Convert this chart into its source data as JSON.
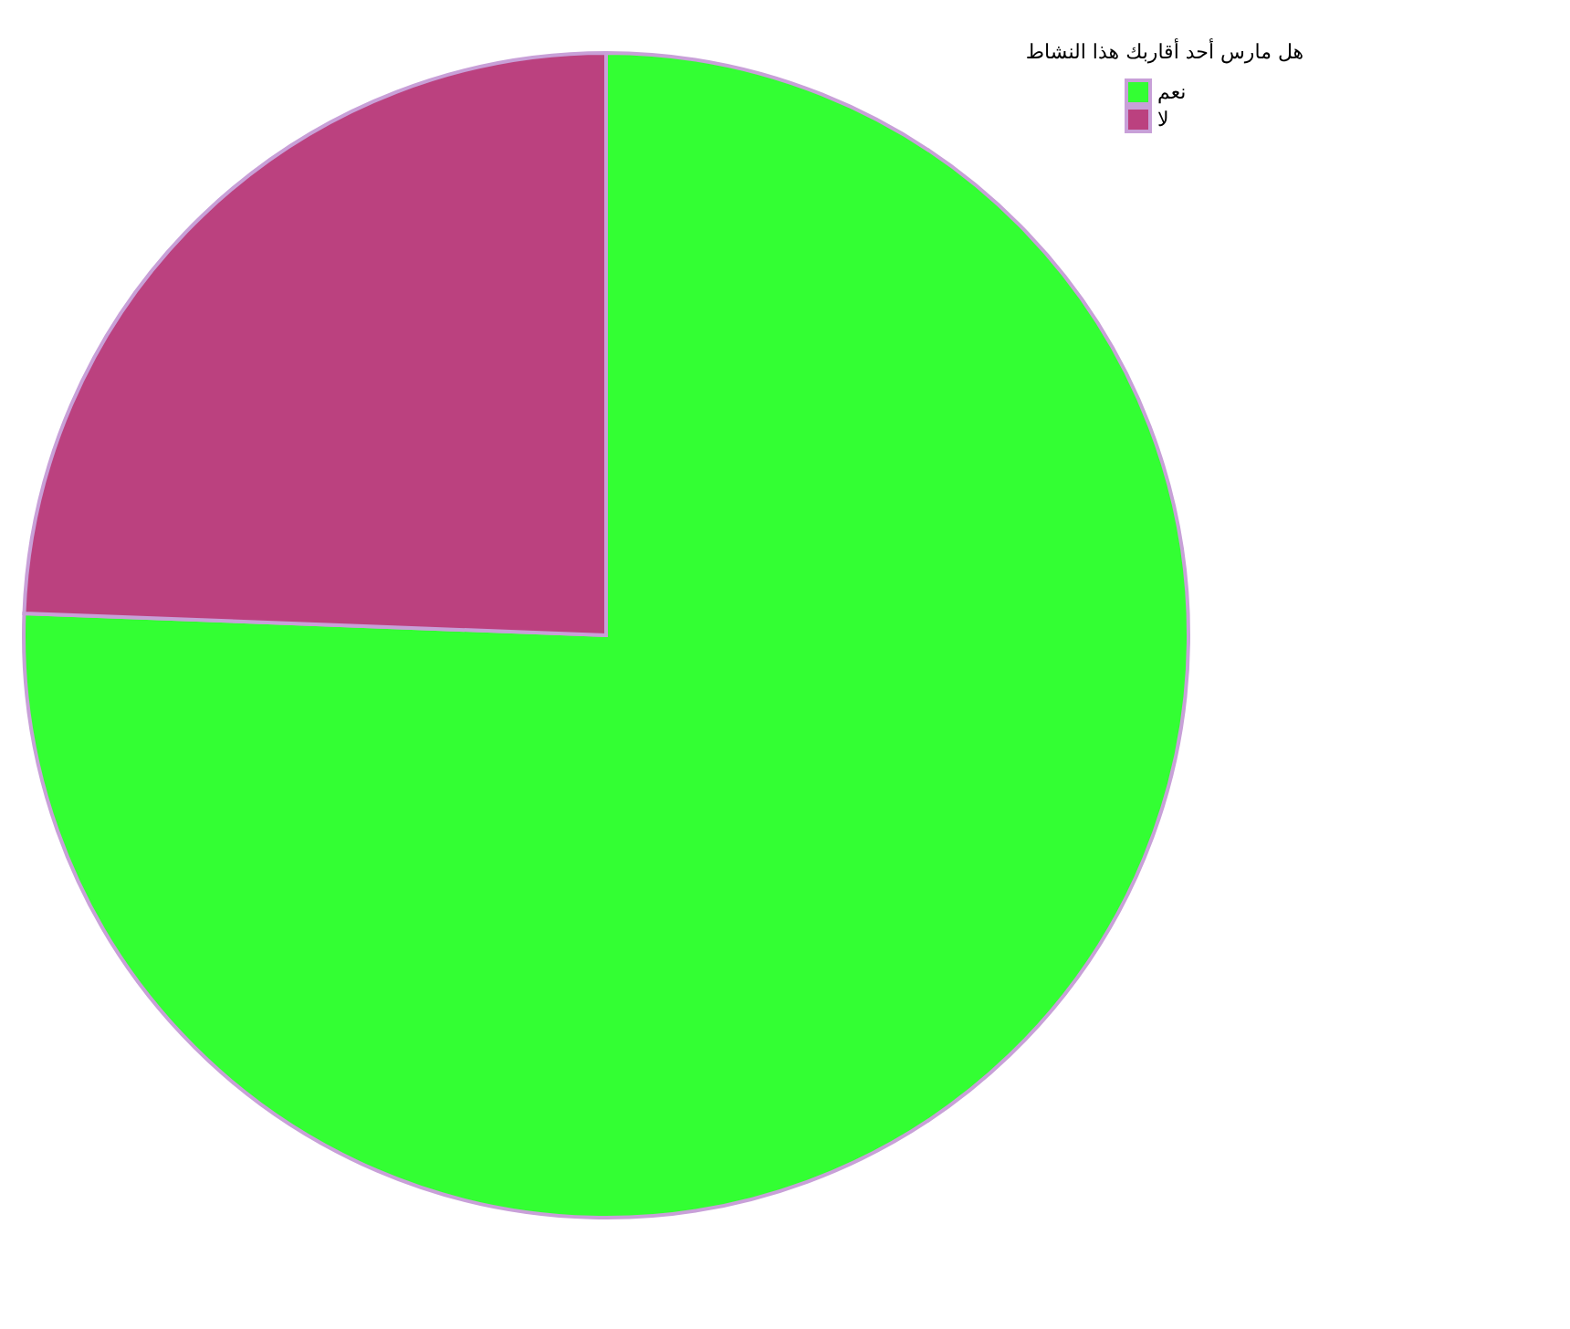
{
  "chart_data": {
    "type": "pie",
    "legend_title": "هل مارس أحد أقاربك هذا النشاط",
    "categories": [
      "نعم",
      "لا"
    ],
    "values": [
      75.6,
      24.4
    ],
    "colors": [
      "#33ff33",
      "#bb417f"
    ],
    "legend": "top right"
  }
}
